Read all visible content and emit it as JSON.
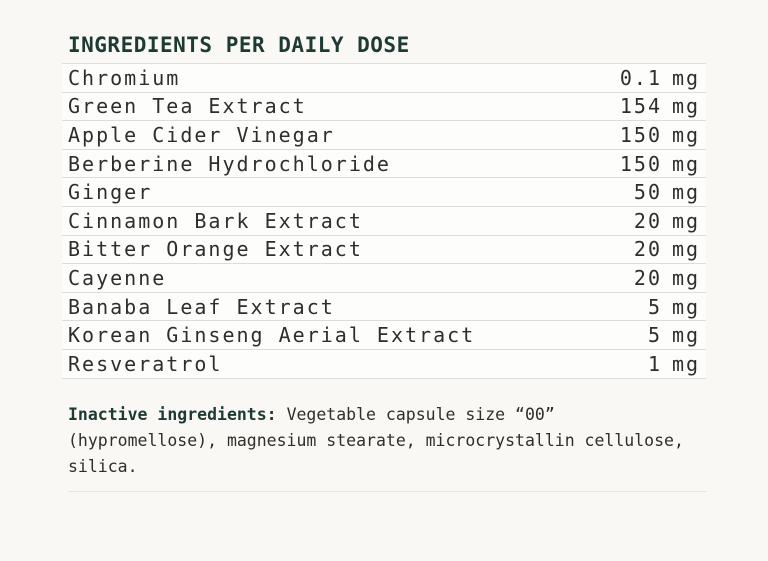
{
  "colors": {
    "background": "#f9f8f5",
    "row_background": "#fdfdfc",
    "divider": "#dcdcdc",
    "accent_teal": "#1d3a33",
    "body_text": "#2e2e2c"
  },
  "header": {
    "title": "INGREDIENTS PER DAILY DOSE"
  },
  "ingredients_table": {
    "rows": [
      {
        "name": "Chromium",
        "amount": "0.1",
        "unit": "mg"
      },
      {
        "name": "Green Tea Extract",
        "amount": "154",
        "unit": "mg"
      },
      {
        "name": "Apple Cider Vinegar",
        "amount": "150",
        "unit": "mg"
      },
      {
        "name": "Berberine Hydrochloride",
        "amount": "150",
        "unit": "mg"
      },
      {
        "name": "Ginger",
        "amount": "50",
        "unit": "mg"
      },
      {
        "name": "Cinnamon Bark Extract",
        "amount": "20",
        "unit": "mg"
      },
      {
        "name": "Bitter Orange Extract",
        "amount": "20",
        "unit": "mg"
      },
      {
        "name": "Cayenne",
        "amount": "20",
        "unit": "mg"
      },
      {
        "name": "Banaba Leaf Extract",
        "amount": "5",
        "unit": "mg"
      },
      {
        "name": "Korean Ginseng Aerial Extract",
        "amount": "5",
        "unit": "mg"
      },
      {
        "name": "Resveratrol",
        "amount": "1",
        "unit": "mg"
      }
    ]
  },
  "inactive": {
    "label": "Inactive ingredients:",
    "text": "Vegetable capsule size “00” (hypromellose), magnesium stearate, microcrystallin cellulose, silica."
  }
}
